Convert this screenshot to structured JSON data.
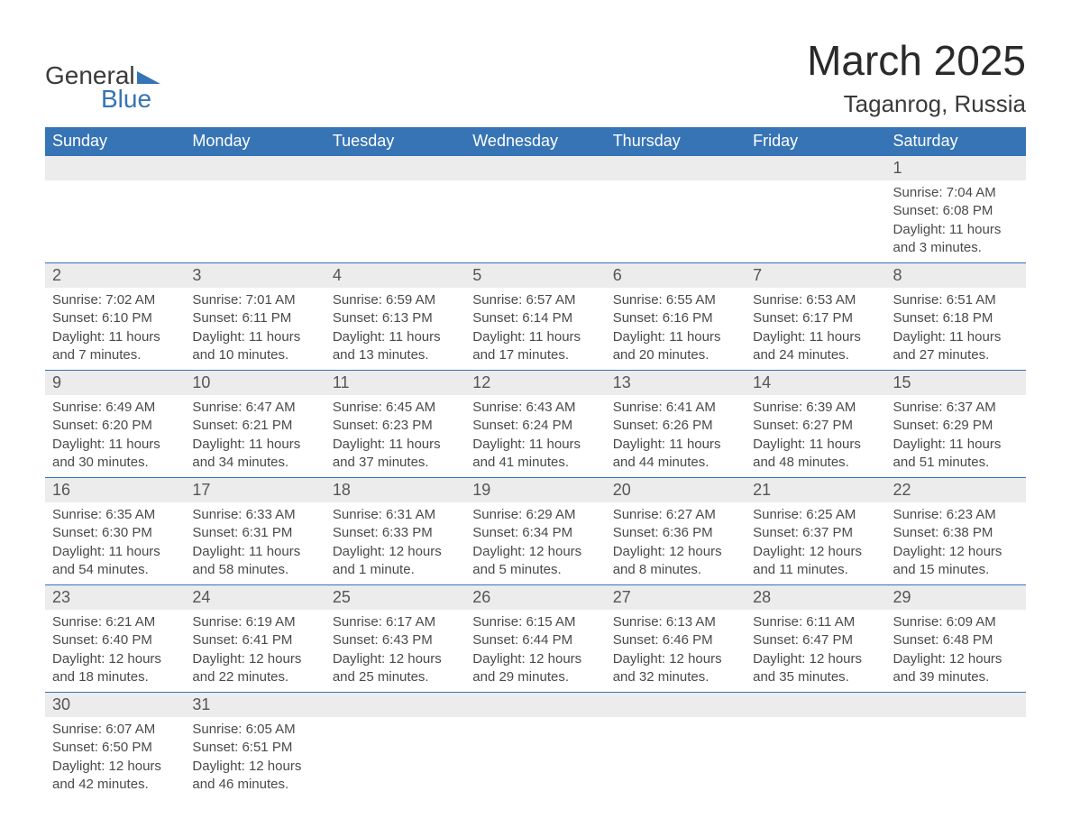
{
  "logo": {
    "word1": "General",
    "word2": "Blue"
  },
  "title": "March 2025",
  "location": "Taganrog, Russia",
  "colors": {
    "header_bg": "#3674b5",
    "header_text": "#ffffff",
    "daynum_bg": "#ececec",
    "row_border": "#3674b5",
    "body_text": "#4a4a4a",
    "page_bg": "#ffffff"
  },
  "fonts": {
    "title_size": 46,
    "location_size": 26,
    "header_size": 18,
    "daynum_size": 18,
    "cell_size": 15
  },
  "columns": [
    "Sunday",
    "Monday",
    "Tuesday",
    "Wednesday",
    "Thursday",
    "Friday",
    "Saturday"
  ],
  "weeks": [
    [
      null,
      null,
      null,
      null,
      null,
      null,
      {
        "n": "1",
        "sr": "Sunrise: 7:04 AM",
        "ss": "Sunset: 6:08 PM",
        "dl": "Daylight: 11 hours and 3 minutes."
      }
    ],
    [
      {
        "n": "2",
        "sr": "Sunrise: 7:02 AM",
        "ss": "Sunset: 6:10 PM",
        "dl": "Daylight: 11 hours and 7 minutes."
      },
      {
        "n": "3",
        "sr": "Sunrise: 7:01 AM",
        "ss": "Sunset: 6:11 PM",
        "dl": "Daylight: 11 hours and 10 minutes."
      },
      {
        "n": "4",
        "sr": "Sunrise: 6:59 AM",
        "ss": "Sunset: 6:13 PM",
        "dl": "Daylight: 11 hours and 13 minutes."
      },
      {
        "n": "5",
        "sr": "Sunrise: 6:57 AM",
        "ss": "Sunset: 6:14 PM",
        "dl": "Daylight: 11 hours and 17 minutes."
      },
      {
        "n": "6",
        "sr": "Sunrise: 6:55 AM",
        "ss": "Sunset: 6:16 PM",
        "dl": "Daylight: 11 hours and 20 minutes."
      },
      {
        "n": "7",
        "sr": "Sunrise: 6:53 AM",
        "ss": "Sunset: 6:17 PM",
        "dl": "Daylight: 11 hours and 24 minutes."
      },
      {
        "n": "8",
        "sr": "Sunrise: 6:51 AM",
        "ss": "Sunset: 6:18 PM",
        "dl": "Daylight: 11 hours and 27 minutes."
      }
    ],
    [
      {
        "n": "9",
        "sr": "Sunrise: 6:49 AM",
        "ss": "Sunset: 6:20 PM",
        "dl": "Daylight: 11 hours and 30 minutes."
      },
      {
        "n": "10",
        "sr": "Sunrise: 6:47 AM",
        "ss": "Sunset: 6:21 PM",
        "dl": "Daylight: 11 hours and 34 minutes."
      },
      {
        "n": "11",
        "sr": "Sunrise: 6:45 AM",
        "ss": "Sunset: 6:23 PM",
        "dl": "Daylight: 11 hours and 37 minutes."
      },
      {
        "n": "12",
        "sr": "Sunrise: 6:43 AM",
        "ss": "Sunset: 6:24 PM",
        "dl": "Daylight: 11 hours and 41 minutes."
      },
      {
        "n": "13",
        "sr": "Sunrise: 6:41 AM",
        "ss": "Sunset: 6:26 PM",
        "dl": "Daylight: 11 hours and 44 minutes."
      },
      {
        "n": "14",
        "sr": "Sunrise: 6:39 AM",
        "ss": "Sunset: 6:27 PM",
        "dl": "Daylight: 11 hours and 48 minutes."
      },
      {
        "n": "15",
        "sr": "Sunrise: 6:37 AM",
        "ss": "Sunset: 6:29 PM",
        "dl": "Daylight: 11 hours and 51 minutes."
      }
    ],
    [
      {
        "n": "16",
        "sr": "Sunrise: 6:35 AM",
        "ss": "Sunset: 6:30 PM",
        "dl": "Daylight: 11 hours and 54 minutes."
      },
      {
        "n": "17",
        "sr": "Sunrise: 6:33 AM",
        "ss": "Sunset: 6:31 PM",
        "dl": "Daylight: 11 hours and 58 minutes."
      },
      {
        "n": "18",
        "sr": "Sunrise: 6:31 AM",
        "ss": "Sunset: 6:33 PM",
        "dl": "Daylight: 12 hours and 1 minute."
      },
      {
        "n": "19",
        "sr": "Sunrise: 6:29 AM",
        "ss": "Sunset: 6:34 PM",
        "dl": "Daylight: 12 hours and 5 minutes."
      },
      {
        "n": "20",
        "sr": "Sunrise: 6:27 AM",
        "ss": "Sunset: 6:36 PM",
        "dl": "Daylight: 12 hours and 8 minutes."
      },
      {
        "n": "21",
        "sr": "Sunrise: 6:25 AM",
        "ss": "Sunset: 6:37 PM",
        "dl": "Daylight: 12 hours and 11 minutes."
      },
      {
        "n": "22",
        "sr": "Sunrise: 6:23 AM",
        "ss": "Sunset: 6:38 PM",
        "dl": "Daylight: 12 hours and 15 minutes."
      }
    ],
    [
      {
        "n": "23",
        "sr": "Sunrise: 6:21 AM",
        "ss": "Sunset: 6:40 PM",
        "dl": "Daylight: 12 hours and 18 minutes."
      },
      {
        "n": "24",
        "sr": "Sunrise: 6:19 AM",
        "ss": "Sunset: 6:41 PM",
        "dl": "Daylight: 12 hours and 22 minutes."
      },
      {
        "n": "25",
        "sr": "Sunrise: 6:17 AM",
        "ss": "Sunset: 6:43 PM",
        "dl": "Daylight: 12 hours and 25 minutes."
      },
      {
        "n": "26",
        "sr": "Sunrise: 6:15 AM",
        "ss": "Sunset: 6:44 PM",
        "dl": "Daylight: 12 hours and 29 minutes."
      },
      {
        "n": "27",
        "sr": "Sunrise: 6:13 AM",
        "ss": "Sunset: 6:46 PM",
        "dl": "Daylight: 12 hours and 32 minutes."
      },
      {
        "n": "28",
        "sr": "Sunrise: 6:11 AM",
        "ss": "Sunset: 6:47 PM",
        "dl": "Daylight: 12 hours and 35 minutes."
      },
      {
        "n": "29",
        "sr": "Sunrise: 6:09 AM",
        "ss": "Sunset: 6:48 PM",
        "dl": "Daylight: 12 hours and 39 minutes."
      }
    ],
    [
      {
        "n": "30",
        "sr": "Sunrise: 6:07 AM",
        "ss": "Sunset: 6:50 PM",
        "dl": "Daylight: 12 hours and 42 minutes."
      },
      {
        "n": "31",
        "sr": "Sunrise: 6:05 AM",
        "ss": "Sunset: 6:51 PM",
        "dl": "Daylight: 12 hours and 46 minutes."
      },
      null,
      null,
      null,
      null,
      null
    ]
  ]
}
